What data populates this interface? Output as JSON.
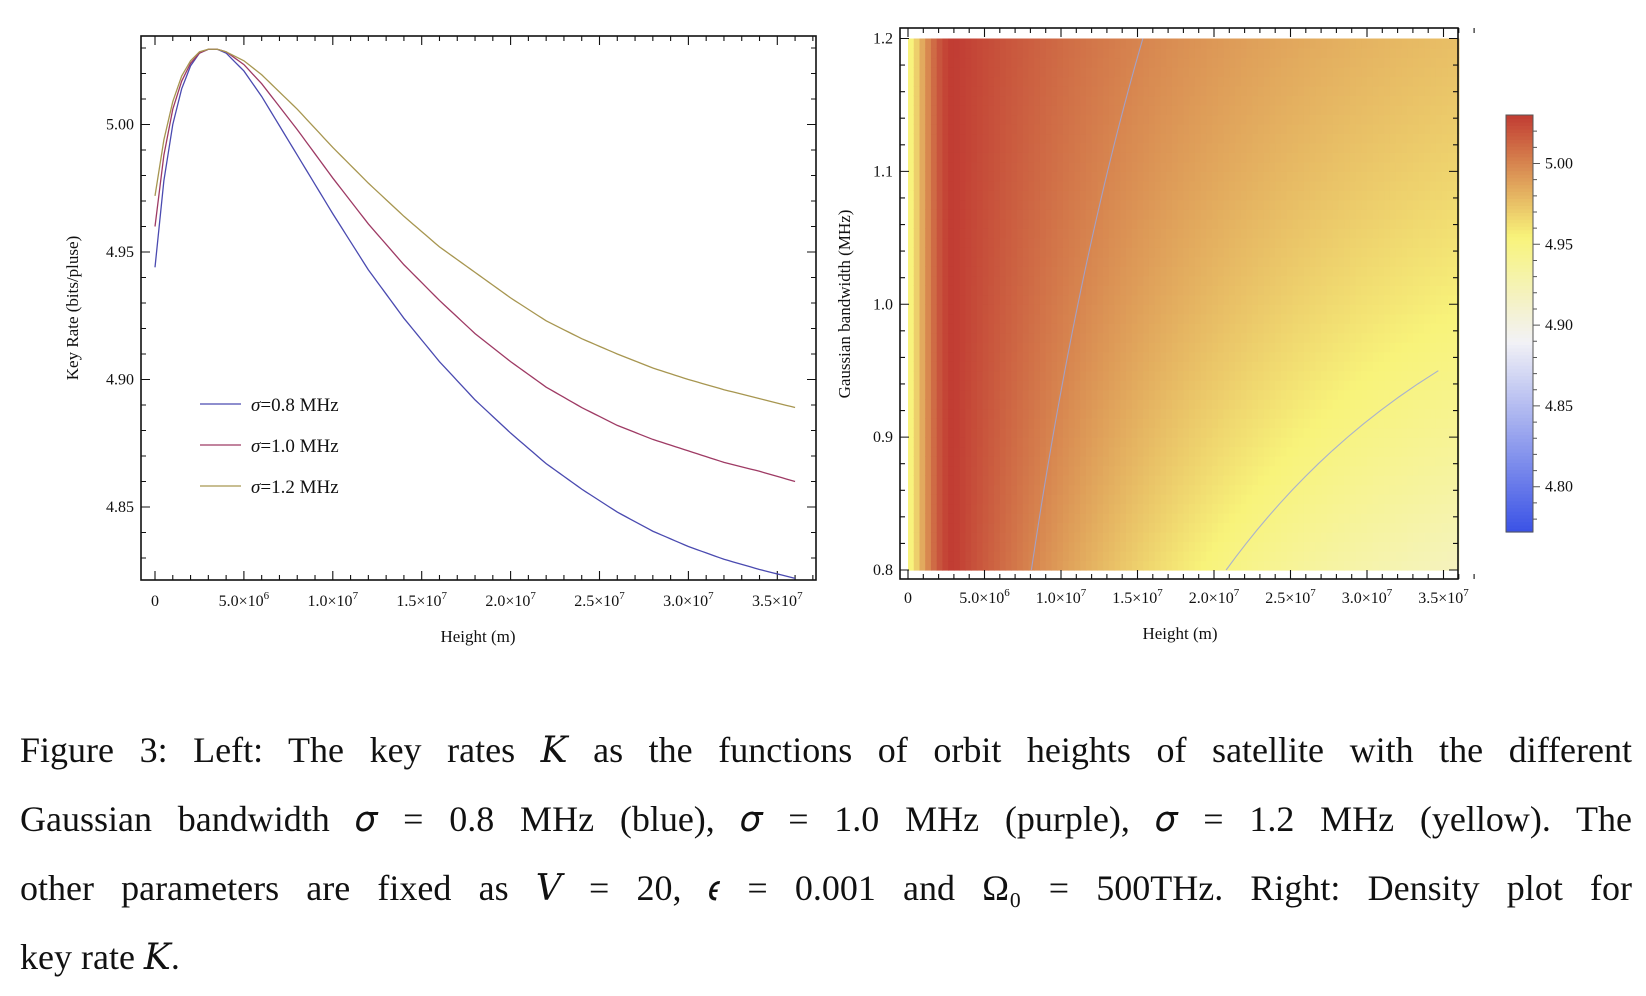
{
  "chart_data": [
    {
      "type": "line",
      "title": "",
      "xlabel": "Height (m)",
      "ylabel": "Key Rate (bits/pluse)",
      "xlim": [
        0,
        37000000
      ],
      "ylim": [
        4.823,
        5.03
      ],
      "x_ticks": [
        {
          "value": 0,
          "label": "0"
        },
        {
          "value": 5000000,
          "label": "5.0×10",
          "exp": "6"
        },
        {
          "value": 10000000,
          "label": "1.0×10",
          "exp": "7"
        },
        {
          "value": 15000000,
          "label": "1.5×10",
          "exp": "7"
        },
        {
          "value": 20000000,
          "label": "2.0×10",
          "exp": "7"
        },
        {
          "value": 25000000,
          "label": "2.5×10",
          "exp": "7"
        },
        {
          "value": 30000000,
          "label": "3.0×10",
          "exp": "7"
        },
        {
          "value": 35000000,
          "label": "3.5×10",
          "exp": "7"
        }
      ],
      "y_ticks": [
        {
          "value": 4.85,
          "label": "4.85"
        },
        {
          "value": 4.9,
          "label": "4.90"
        },
        {
          "value": 4.95,
          "label": "4.95"
        },
        {
          "value": 5.0,
          "label": "5.00"
        }
      ],
      "x": [
        0,
        500000,
        1000000,
        1500000,
        2000000,
        2500000,
        3000000,
        3500000,
        4000000,
        5000000,
        6000000,
        8000000,
        10000000,
        12000000,
        14000000,
        16000000,
        18000000,
        20000000,
        22000000,
        24000000,
        26000000,
        28000000,
        30000000,
        32000000,
        34000000,
        36000000
      ],
      "series": [
        {
          "name": "σ=0.8 MHz",
          "color": "#4a4ab0",
          "values": [
            4.944,
            4.978,
            5.0,
            5.014,
            5.023,
            5.028,
            5.0295,
            5.0295,
            5.028,
            5.021,
            5.011,
            4.988,
            4.965,
            4.943,
            4.924,
            4.907,
            4.892,
            4.879,
            4.867,
            4.857,
            4.848,
            4.8405,
            4.8345,
            4.8295,
            4.8255,
            4.822
          ]
        },
        {
          "name": "σ=1.0 MHz",
          "color": "#9e3a64",
          "values": [
            4.96,
            4.988,
            5.006,
            5.017,
            5.024,
            5.028,
            5.0295,
            5.0295,
            5.0285,
            5.0235,
            5.016,
            4.998,
            4.979,
            4.961,
            4.945,
            4.931,
            4.918,
            4.907,
            4.897,
            4.889,
            4.882,
            4.8765,
            4.872,
            4.8675,
            4.864,
            4.86
          ]
        },
        {
          "name": "σ=1.2 MHz",
          "color": "#a79650",
          "values": [
            4.972,
            4.994,
            5.009,
            5.019,
            5.025,
            5.0285,
            5.0295,
            5.0295,
            5.0285,
            5.025,
            5.0195,
            5.006,
            4.991,
            4.977,
            4.964,
            4.952,
            4.942,
            4.932,
            4.923,
            4.916,
            4.91,
            4.9045,
            4.9,
            4.896,
            4.8925,
            4.889
          ]
        }
      ],
      "legend": "center-left"
    },
    {
      "type": "heatmap",
      "title": "",
      "xlabel": "Height (m)",
      "ylabel": "Gaussian bandwidth (MHz)",
      "xlim": [
        0,
        37000000
      ],
      "ylim": [
        0.8,
        1.2
      ],
      "x_ticks": [
        {
          "value": 0,
          "label": "0"
        },
        {
          "value": 5000000,
          "label": "5.0×10",
          "exp": "6"
        },
        {
          "value": 10000000,
          "label": "1.0×10",
          "exp": "7"
        },
        {
          "value": 15000000,
          "label": "1.5×10",
          "exp": "7"
        },
        {
          "value": 20000000,
          "label": "2.0×10",
          "exp": "7"
        },
        {
          "value": 25000000,
          "label": "2.5×10",
          "exp": "7"
        },
        {
          "value": 30000000,
          "label": "3.0×10",
          "exp": "7"
        },
        {
          "value": 35000000,
          "label": "3.5×10",
          "exp": "7"
        }
      ],
      "y_ticks": [
        {
          "value": 0.8,
          "label": "0.8"
        },
        {
          "value": 0.9,
          "label": "0.9"
        },
        {
          "value": 1.0,
          "label": "1.0"
        },
        {
          "value": 1.1,
          "label": "1.1"
        },
        {
          "value": 1.2,
          "label": "1.2"
        }
      ],
      "colorbar": {
        "range": [
          4.772,
          5.03
        ],
        "ticks": [
          {
            "value": 4.8,
            "label": "4.80"
          },
          {
            "value": 4.85,
            "label": "4.85"
          },
          {
            "value": 4.9,
            "label": "4.90"
          },
          {
            "value": 4.95,
            "label": "4.95"
          },
          {
            "value": 5.0,
            "label": "5.00"
          }
        ],
        "colors": [
          "#3a52e6",
          "#f2f2f6",
          "#f8f37a",
          "#c13c33"
        ]
      },
      "contours": [
        5.0,
        4.95,
        4.9,
        4.85,
        4.8
      ]
    }
  ],
  "caption": {
    "line1": "Figure 3: Left: The key rates 𝐾 as the functions of orbit heights of satellite with the different",
    "line2": "Gaussian bandwidth 𝜎 = 0.8 MHz (blue), 𝜎 = 1.0 MHz (purple), 𝜎 = 1.2 MHz (yellow). The",
    "line3": "other parameters are fixed as 𝑉 = 20, 𝜖 = 0.001 and Ω₀ = 500THz. Right: Density plot for",
    "line4": "key rate 𝐾."
  }
}
